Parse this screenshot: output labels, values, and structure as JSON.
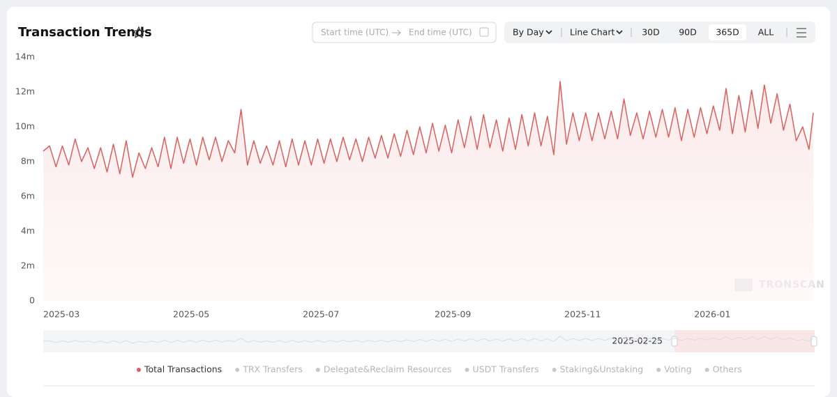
{
  "ui": {
    "start_time": "Start time (UTC)",
    "end_time": "End time (UTC)",
    "interval": "By Day",
    "chart_kind": "Line Chart",
    "ranges": [
      "30D",
      "90D",
      "365D",
      "ALL"
    ],
    "watermark": "TRONSCAN",
    "slider_date": "2025-02-25"
  },
  "chart_data": {
    "type": "line",
    "title": "Transaction Trends",
    "x": [
      0,
      3,
      6,
      9,
      12,
      15,
      18,
      21,
      24,
      27,
      30,
      33,
      36,
      39,
      42,
      45,
      48,
      51,
      54,
      57,
      60,
      63,
      66,
      69,
      72,
      75,
      78,
      81,
      84,
      87,
      90,
      93,
      96,
      99,
      102,
      105,
      108,
      111,
      114,
      117,
      120,
      123,
      126,
      129,
      132,
      135,
      138,
      141,
      144,
      147,
      150,
      153,
      156,
      159,
      162,
      165,
      168,
      171,
      174,
      177,
      180,
      183,
      186,
      189,
      192,
      195,
      198,
      201,
      204,
      207,
      210,
      213,
      216,
      219,
      222,
      225,
      228,
      231,
      234,
      237,
      240,
      243,
      246,
      249,
      252,
      255,
      258,
      261,
      264,
      267,
      270,
      273,
      276,
      279,
      282,
      285,
      288,
      291,
      294,
      297,
      300,
      303,
      306,
      309,
      312,
      315,
      318,
      321,
      324,
      327,
      330,
      333,
      336,
      339,
      342,
      345,
      348,
      351,
      354,
      357,
      360,
      362
    ],
    "series": [
      {
        "name": "Total Transactions",
        "color": "#d9605f",
        "values": [
          8.6,
          8.9,
          7.7,
          8.9,
          7.8,
          9.3,
          8.0,
          8.8,
          7.6,
          8.8,
          7.4,
          9.0,
          7.3,
          9.2,
          7.1,
          8.5,
          7.6,
          8.8,
          7.7,
          9.4,
          7.6,
          9.4,
          7.9,
          9.3,
          7.8,
          9.4,
          8.1,
          9.4,
          8.0,
          9.2,
          8.5,
          11.0,
          7.8,
          9.2,
          7.9,
          8.9,
          7.8,
          9.2,
          7.7,
          9.3,
          7.8,
          9.2,
          7.8,
          9.3,
          7.9,
          9.3,
          8.0,
          9.4,
          8.1,
          9.3,
          8.0,
          9.4,
          8.2,
          9.5,
          8.2,
          9.6,
          8.3,
          9.8,
          8.4,
          10.0,
          8.5,
          10.2,
          8.6,
          10.1,
          8.5,
          10.4,
          8.8,
          10.6,
          8.7,
          10.7,
          8.8,
          10.4,
          8.6,
          10.5,
          8.7,
          10.7,
          8.9,
          10.8,
          8.9,
          10.6,
          8.4,
          12.6,
          9.0,
          10.8,
          9.2,
          10.8,
          9.2,
          10.8,
          9.3,
          10.9,
          9.3,
          11.6,
          9.5,
          10.8,
          9.3,
          10.9,
          9.4,
          11.0,
          9.4,
          11.1,
          9.2,
          11.0,
          9.4,
          11.1,
          9.6,
          11.2,
          9.8,
          12.2,
          9.6,
          11.8,
          9.7,
          12.1,
          9.9,
          12.4,
          10.2,
          11.9,
          9.8,
          11.3,
          9.2,
          10.0,
          8.7,
          10.8
        ]
      }
    ],
    "legend": [
      {
        "name": "TRX Transfers",
        "color": "#c8c8c8"
      },
      {
        "name": "Delegate&Reclaim Resources",
        "color": "#c8c8c8"
      },
      {
        "name": "USDT Transfers",
        "color": "#c8c8c8"
      },
      {
        "name": "Staking&Unstaking",
        "color": "#c8c8c8"
      },
      {
        "name": "Voting",
        "color": "#c8c8c8"
      },
      {
        "name": "Others",
        "color": "#c8c8c8"
      }
    ],
    "xlim": [
      0,
      362
    ],
    "xticks": [
      {
        "value": 0,
        "label": "2025-03"
      },
      {
        "value": 61,
        "label": "2025-05"
      },
      {
        "value": 122,
        "label": "2025-07"
      },
      {
        "value": 184,
        "label": "2025-09"
      },
      {
        "value": 245,
        "label": "2025-11"
      },
      {
        "value": 306,
        "label": "2026-01"
      }
    ],
    "ylim": [
      0,
      14
    ],
    "yticks": [
      {
        "value": 0,
        "label": "0"
      },
      {
        "value": 2,
        "label": "2m"
      },
      {
        "value": 4,
        "label": "4m"
      },
      {
        "value": 6,
        "label": "6m"
      },
      {
        "value": 8,
        "label": "8m"
      },
      {
        "value": 10,
        "label": "10m"
      },
      {
        "value": 12,
        "label": "12m"
      },
      {
        "value": 14,
        "label": "14m"
      }
    ],
    "grid": false
  }
}
